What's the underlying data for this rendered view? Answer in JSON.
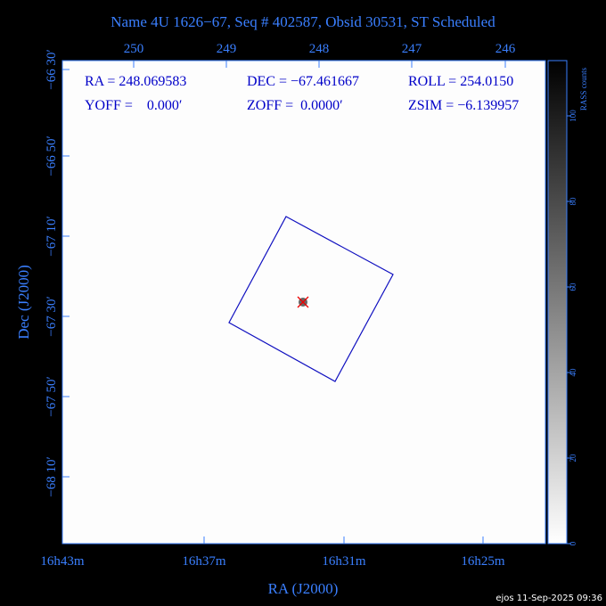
{
  "title": "Name 4U 1626−67, Seq # 402587, Obsid 30531, ST Scheduled",
  "top_axis": {
    "ticks": [
      "250",
      "249",
      "248",
      "247",
      "246"
    ]
  },
  "bottom_axis": {
    "ticks": [
      "16h43m",
      "16h37m",
      "16h31m",
      "16h25m"
    ],
    "label": "RA (J2000)"
  },
  "left_axis": {
    "ticks": [
      "−66 30′",
      "−66 50′",
      "−67 10′",
      "−67 30′",
      "−67 50′",
      "−68 10′"
    ],
    "label": "Dec (J2000)"
  },
  "info": [
    [
      "RA = 248.069583",
      "DEC = −67.461667",
      "ROLL = 254.0150"
    ],
    [
      "YOFF =    0.000′",
      "ZOFF =  0.0000′",
      "ZSIM = −6.139957"
    ]
  ],
  "colorbar": {
    "label": "RASS counts",
    "ticks": [
      "0",
      "20",
      "40",
      "60",
      "80",
      "100"
    ]
  },
  "footer": "ejos 11-Sep-2025 09:36"
}
